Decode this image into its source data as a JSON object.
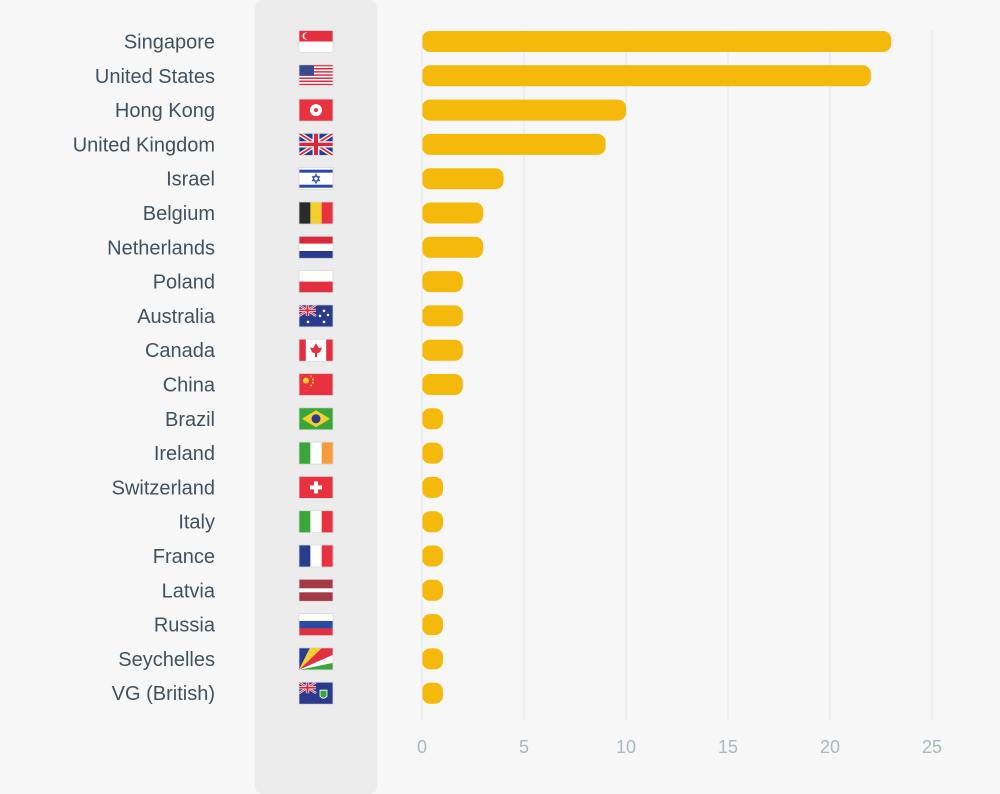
{
  "chart_data": {
    "type": "bar",
    "orientation": "horizontal",
    "title": "",
    "xlabel": "",
    "ylabel": "",
    "xlim": [
      0,
      25
    ],
    "grid": true,
    "categories": [
      "Singapore",
      "United States",
      "Hong Kong",
      "United Kingdom",
      "Israel",
      "Belgium",
      "Netherlands",
      "Poland",
      "Australia",
      "Canada",
      "China",
      "Brazil",
      "Ireland",
      "Switzerland",
      "Italy",
      "France",
      "Latvia",
      "Russia",
      "Seychelles",
      "VG (British)"
    ],
    "values": [
      23,
      22,
      10,
      9,
      4,
      3,
      3,
      2,
      2,
      2,
      2,
      1,
      1,
      1,
      1,
      1,
      1,
      1,
      1,
      1
    ],
    "x_ticks": [
      "0",
      "5",
      "10",
      "15",
      "20",
      "25"
    ],
    "bar_color": "#f5b90c",
    "grid_color": "#e1e5e8",
    "flags": [
      "singapore-flag",
      "us-flag",
      "hong-kong-flag",
      "uk-flag",
      "israel-flag",
      "belgium-flag",
      "netherlands-flag",
      "poland-flag",
      "australia-flag",
      "canada-flag",
      "china-flag",
      "brazil-flag",
      "ireland-flag",
      "switzerland-flag",
      "italy-flag",
      "france-flag",
      "latvia-flag",
      "russia-flag",
      "seychelles-flag",
      "vg-british-flag"
    ]
  }
}
